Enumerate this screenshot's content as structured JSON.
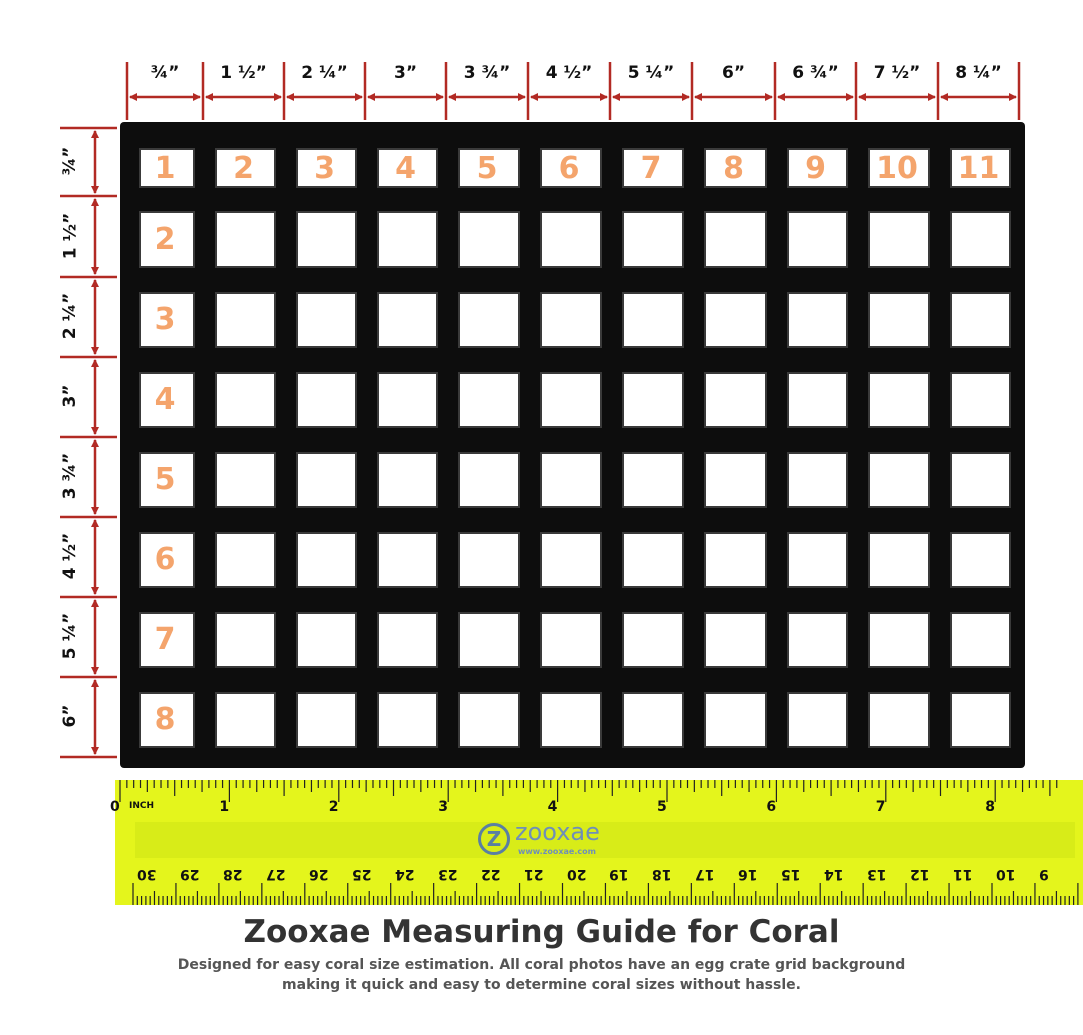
{
  "colors": {
    "dimension": "#b22a24",
    "cell_number": "#f4a46c",
    "ruler": "#e4f51c",
    "grid": "#0d0d0d",
    "logo": "#5a7fa3"
  },
  "column_labels": [
    "¾”",
    "1 ½”",
    "2 ¼”",
    "3”",
    "3 ¾”",
    "4 ½”",
    "5 ¼”",
    "6”",
    "6 ¾”",
    "7 ½”",
    "8 ¼”"
  ],
  "row_labels": [
    "¾”",
    "1 ½”",
    "2 ¼”",
    "3”",
    "3 ¾”",
    "4 ½”",
    "5 ¼”",
    "6”"
  ],
  "column_numbers": [
    "1",
    "2",
    "3",
    "4",
    "5",
    "6",
    "7",
    "8",
    "9",
    "10",
    "11"
  ],
  "row_numbers": [
    "2",
    "3",
    "4",
    "5",
    "6",
    "7",
    "8"
  ],
  "ruler": {
    "inch_unit": "INCH",
    "inch_numbers": [
      "0",
      "1",
      "2",
      "3",
      "4",
      "5",
      "6",
      "7",
      "8"
    ],
    "cm_numbers": [
      "30",
      "29",
      "28",
      "27",
      "26",
      "25",
      "24",
      "23",
      "22",
      "21",
      "20",
      "19",
      "18",
      "17",
      "16",
      "15",
      "14",
      "13",
      "12",
      "11",
      "10",
      "9"
    ],
    "logo_text": "zooxae",
    "logo_url": "www.zooxae.com"
  },
  "title": "Zooxae Measuring Guide for Coral",
  "subtitle_lines": [
    "Designed for easy coral size estimation. All coral photos have an egg crate grid background",
    "making it quick and easy to determine coral sizes without hassle."
  ]
}
